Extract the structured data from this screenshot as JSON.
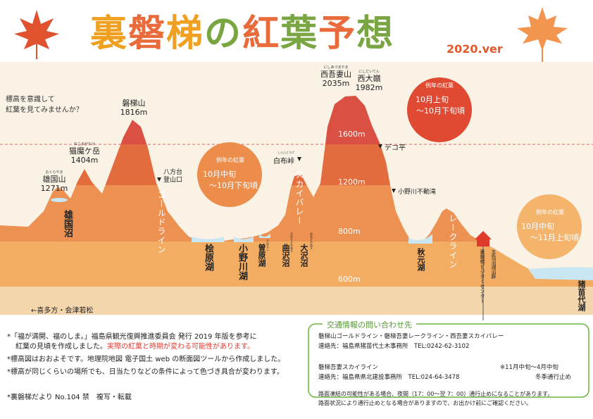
{
  "title": {
    "chars": [
      "裏",
      "磐",
      "梯",
      "の",
      "紅",
      "葉",
      "予",
      "想"
    ],
    "colors": [
      "#f0a020",
      "#e96a3a",
      "#f0a020",
      "#79a642",
      "#e96a3a",
      "#79a642",
      "#e96a3a",
      "#79a642"
    ],
    "version": "2020.ver"
  },
  "intro_text": [
    "標高を意識して",
    "紅葉を見てみませんか？"
  ],
  "elevation_bands": [
    "1600m",
    "1200m",
    "800m",
    "600m"
  ],
  "peaks": {
    "nishiazuma": {
      "ruby": "にしあづまやま",
      "name": "西吾妻山",
      "elev": "2035m"
    },
    "nishidaiten": {
      "ruby": "にしだいてん",
      "name": "西大巓",
      "elev": "1982m"
    },
    "bandai": {
      "name": "磐梯山",
      "elev": "1816m"
    },
    "nekoma": {
      "ruby": "ねこまがたけ",
      "name": "猫魔ケ岳",
      "elev": "1404m"
    },
    "ogura": {
      "ruby": "おぐらやま",
      "name": "雄国山",
      "elev": "1271m"
    }
  },
  "points": {
    "happodai": [
      "八方台",
      "登山口"
    ],
    "shirafu_ruby": "しらふとうげ",
    "shirafu": "白布峠",
    "deko": "デコ平",
    "onogawa_falls": "小野川不動滝"
  },
  "roads": {
    "gold": "ゴールドライン",
    "sky": "スカイバレー",
    "lake": "レークライン"
  },
  "lakes": {
    "oguni": "雄国沼",
    "hibara": "桧原湖",
    "onogawa": "小野川湖",
    "sohara_ruby": "そはらこ",
    "sohara": "曽原湖",
    "magari_ruby": "まがりさわぬま",
    "magari": "曲沢沼",
    "osawa_ruby": "おおさわぬま",
    "osawa": "大沢沼",
    "akimoto": "秋元湖",
    "goshiki": "五色沼湖沼群",
    "visitor": "裏磐梯ビジターセンター",
    "inawashiro": "猪苗代湖"
  },
  "access_arrow": "←喜多方・会津若松",
  "forecasts": [
    {
      "header": "例年の紅葉",
      "line1": "10月上旬",
      "line2": "～10月下旬頃"
    },
    {
      "header": "例年の紅葉",
      "line1": "10月中旬",
      "line2": "～10月下旬頃"
    },
    {
      "header": "例年の紅葉",
      "line1": "10月中旬",
      "line2": "～11月上旬頃"
    }
  ],
  "notes": {
    "n1a": "*「福が満開、福のしま。」福島県観光復興推進委員会 発行 2019 年版を参考に",
    "n1b_pre": "紅葉の見頃を作成しました。",
    "n1b_red": "実際の紅葉と時期が変わる可能性があります。",
    "n2": "*標高図はおおよそです。地理院地図 電子国土 web の断面図ツールから作成しました。",
    "n3": "*標高が同じくらいの場所でも、日当たりなどの条件によって色づき具合が変わります。",
    "n4": "*裏磐梯だより No.104 禁　複写・転載"
  },
  "contact": {
    "title": "交通情報の問い合わせ先",
    "r1": "磐梯山ゴールドライン・磐梯吾妻レークライン・西吾妻スカイバレー",
    "r2": "連絡先：福島県猪苗代土木事務所　TEL:0242-62-3102",
    "r3": "磐梯吾妻スカイライン",
    "r3b": "※11月中旬～4月中旬",
    "r4": "連絡先：福島県県北建設事務所　TEL:024-64-3478",
    "r4b": "冬季通行止め",
    "r5": "路面凍結の可能性がある場合、夜間（17：00～翌 7：00）通行止めになることがあります。",
    "r6": "路面状況により通行止めとなる場合がありますので、お出かけ前にご確認ください。"
  }
}
